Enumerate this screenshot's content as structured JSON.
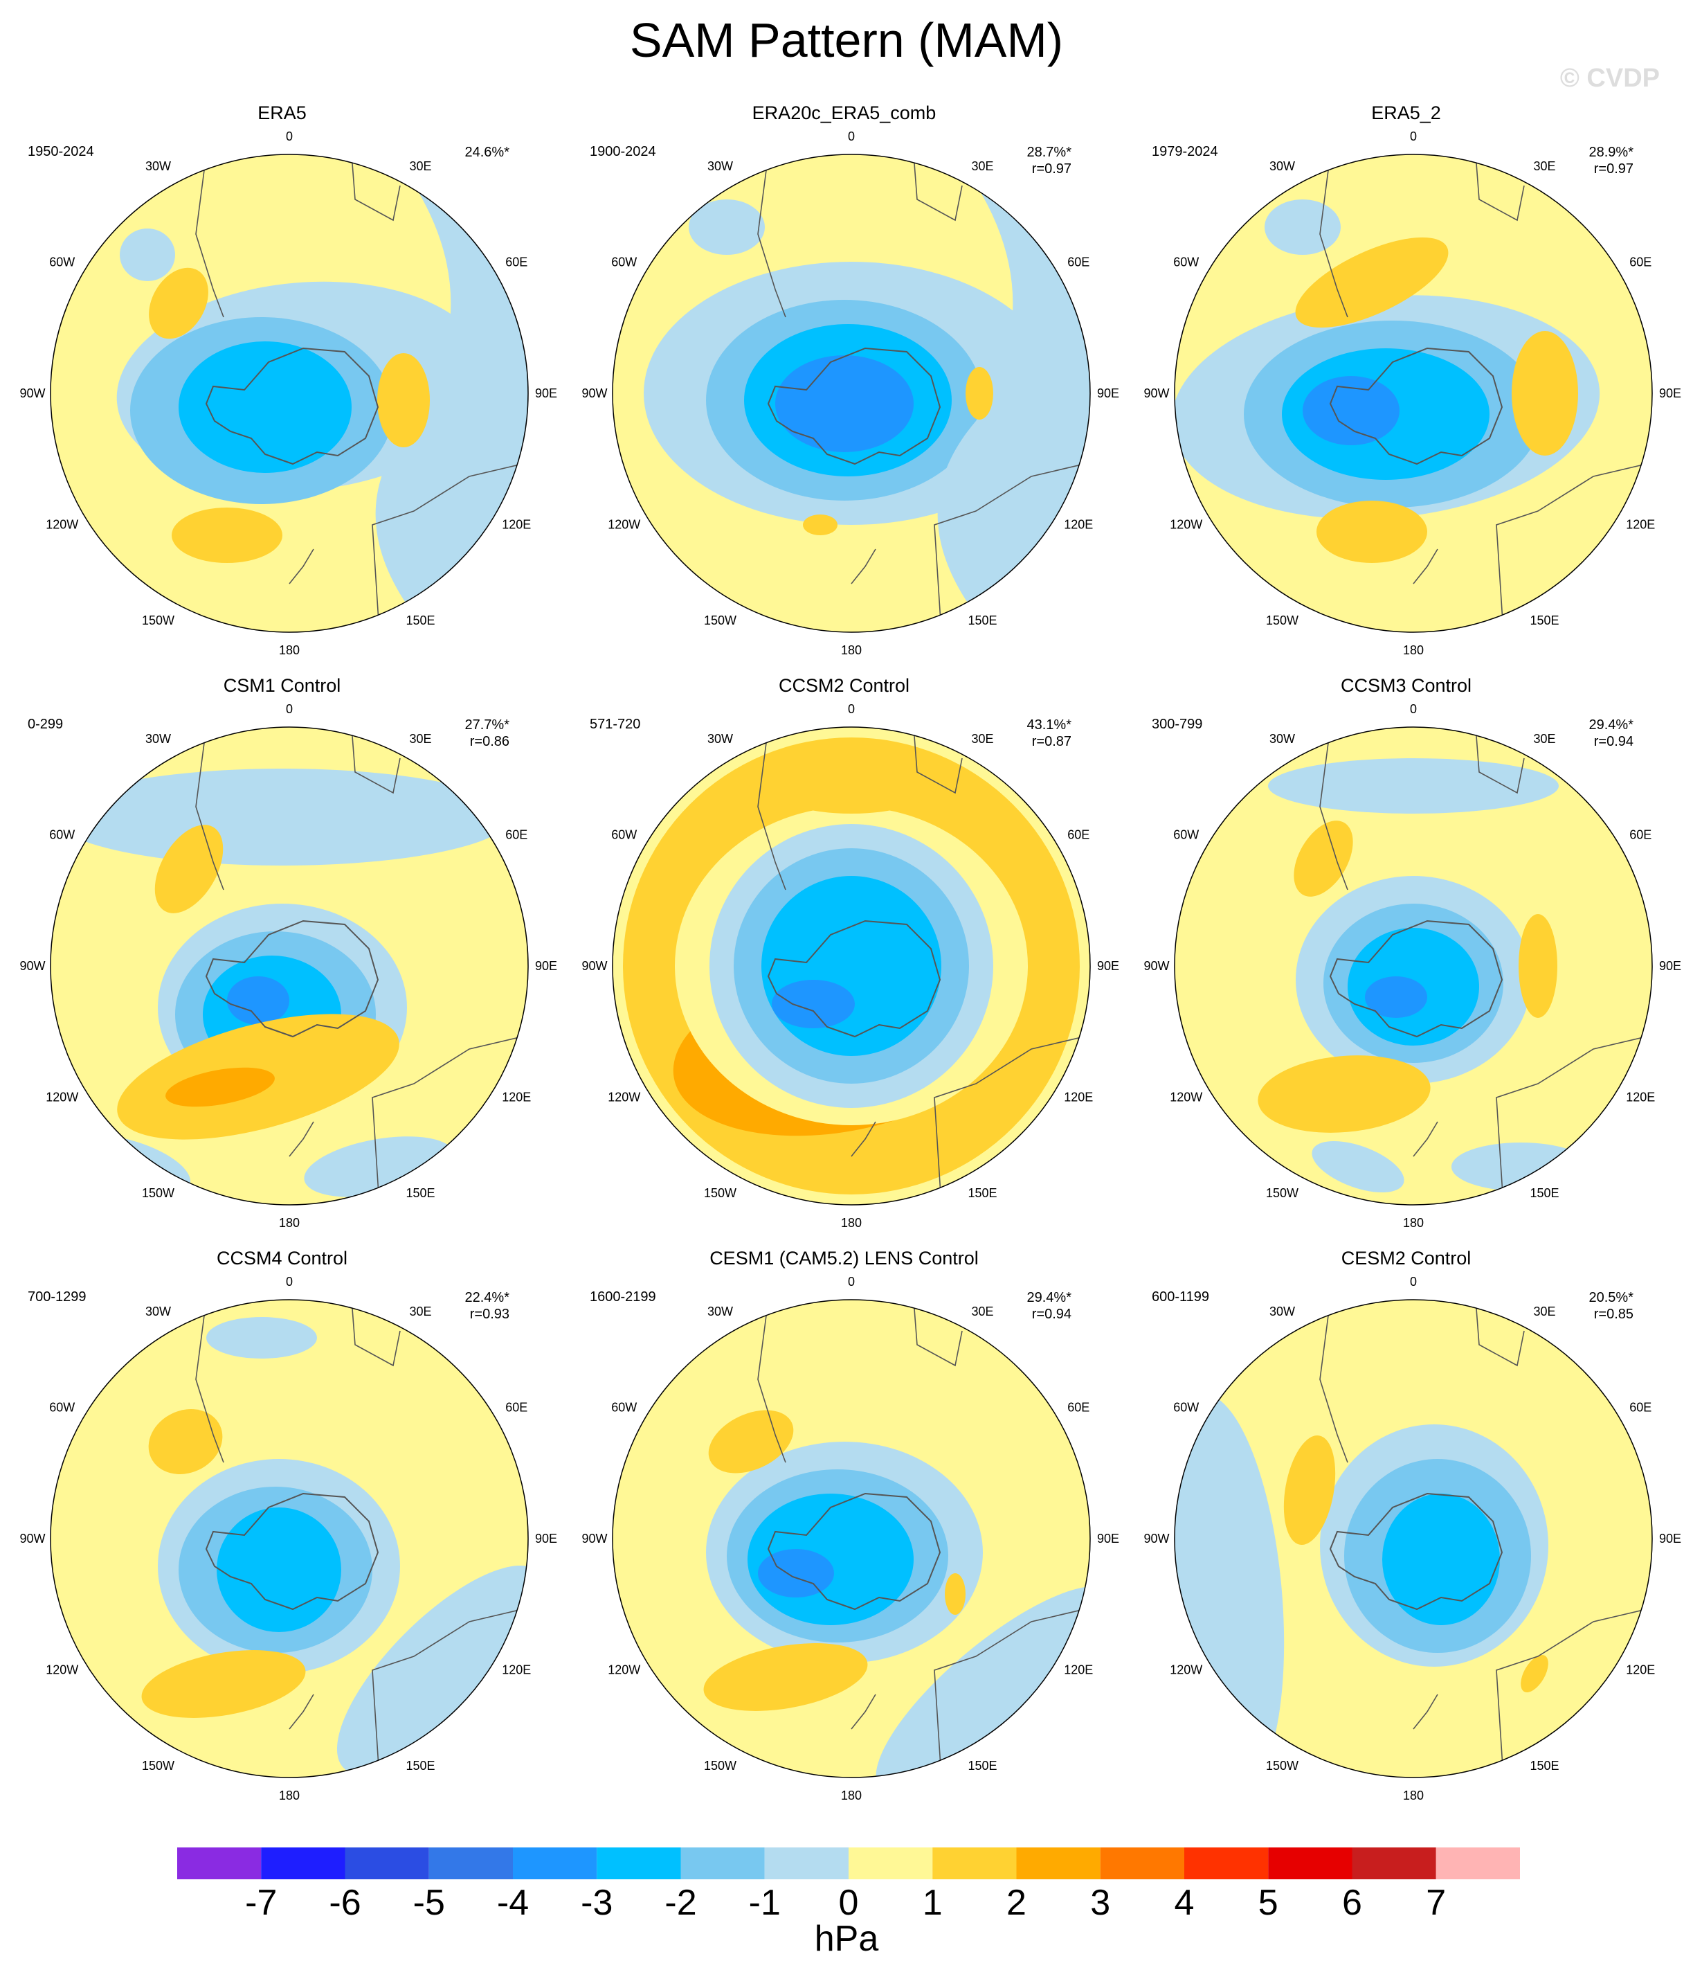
{
  "title": "SAM Pattern (MAM)",
  "watermark": "© CVDP",
  "lon_labels": [
    "0",
    "30E",
    "60E",
    "90E",
    "120E",
    "150E",
    "180",
    "150W",
    "120W",
    "90W",
    "60W",
    "30W"
  ],
  "panels": [
    {
      "name": "ERA5",
      "years": "1950-2024",
      "pct": "24.6%*",
      "r": ""
    },
    {
      "name": "ERA20c_ERA5_comb",
      "years": "1900-2024",
      "pct": "28.7%*",
      "r": "r=0.97"
    },
    {
      "name": "ERA5_2",
      "years": "1979-2024",
      "pct": "28.9%*",
      "r": "r=0.97"
    },
    {
      "name": "CSM1 Control",
      "years": "0-299",
      "pct": "27.7%*",
      "r": "r=0.86"
    },
    {
      "name": "CCSM2 Control",
      "years": "571-720",
      "pct": "43.1%*",
      "r": "r=0.87"
    },
    {
      "name": "CCSM3 Control",
      "years": "300-799",
      "pct": "29.4%*",
      "r": "r=0.94"
    },
    {
      "name": "CCSM4 Control",
      "years": "700-1299",
      "pct": "22.4%*",
      "r": "r=0.93"
    },
    {
      "name": "CESM1 (CAM5.2) LENS Control",
      "years": "1600-2199",
      "pct": "29.4%*",
      "r": "r=0.94"
    },
    {
      "name": "CESM2 Control",
      "years": "600-1199",
      "pct": "20.5%*",
      "r": "r=0.85"
    }
  ],
  "colorbar": {
    "colors": [
      "#8a2be2",
      "#1e1eff",
      "#2b4de3",
      "#3378e8",
      "#1e96ff",
      "#00c0ff",
      "#78c8f0",
      "#b4dcf0",
      "#fff896",
      "#ffd232",
      "#ffaa00",
      "#ff7800",
      "#ff3200",
      "#e60000",
      "#c81e1e",
      "#ffb4b4"
    ],
    "ticks": [
      "-7",
      "-6",
      "-5",
      "-4",
      "-3",
      "-2",
      "-1",
      "0",
      "1",
      "2",
      "3",
      "4",
      "5",
      "6",
      "7"
    ],
    "units": "hPa"
  }
}
